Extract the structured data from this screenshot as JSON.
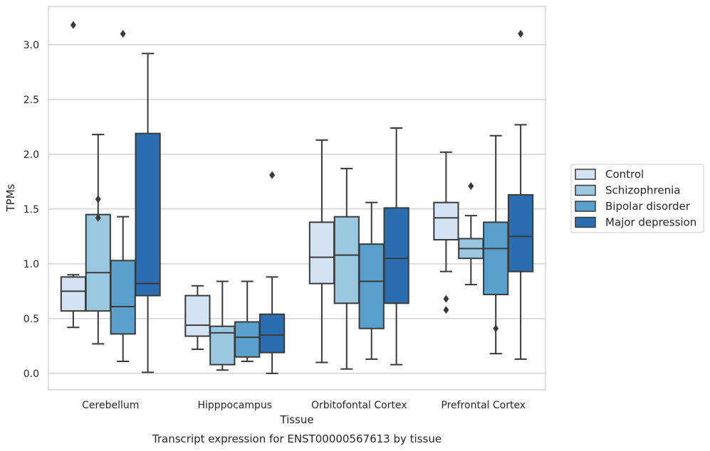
{
  "chart_data": {
    "type": "box",
    "title": "",
    "xlabel": "Tissue",
    "ylabel": "TPMs",
    "caption": "Transcript expression for ENST00000567613 by tissue",
    "ylim": [
      -0.15,
      3.35
    ],
    "yticks": [
      0.0,
      0.5,
      1.0,
      1.5,
      2.0,
      2.5,
      3.0
    ],
    "ytick_labels": [
      "0.0",
      "0.5",
      "1.0",
      "1.5",
      "2.0",
      "2.5",
      "3.0"
    ],
    "grid": "horizontal",
    "legend_position": "right",
    "categories": [
      "Cerebellum",
      "Hipppocampus",
      "Orbitofontal Cortex",
      "Prefrontal Cortex"
    ],
    "series": [
      {
        "name": "Control",
        "color": "#d3e3f3",
        "boxes": [
          {
            "q1": 0.57,
            "median": 0.75,
            "q3": 0.88,
            "whislo": 0.42,
            "whishi": 0.9,
            "fliers": [
              3.18
            ]
          },
          {
            "q1": 0.34,
            "median": 0.44,
            "q3": 0.71,
            "whislo": 0.22,
            "whishi": 0.8,
            "fliers": []
          },
          {
            "q1": 0.82,
            "median": 1.06,
            "q3": 1.38,
            "whislo": 0.1,
            "whishi": 2.13,
            "fliers": []
          },
          {
            "q1": 1.22,
            "median": 1.42,
            "q3": 1.56,
            "whislo": 0.93,
            "whishi": 2.02,
            "fliers": [
              0.68,
              0.58
            ]
          }
        ]
      },
      {
        "name": "Schizophrenia",
        "color": "#9ac8e0",
        "boxes": [
          {
            "q1": 0.57,
            "median": 0.92,
            "q3": 1.45,
            "whislo": 0.27,
            "whishi": 2.18,
            "fliers": [
              1.59,
              1.42
            ]
          },
          {
            "q1": 0.08,
            "median": 0.37,
            "q3": 0.43,
            "whislo": 0.03,
            "whishi": 0.84,
            "fliers": []
          },
          {
            "q1": 0.64,
            "median": 1.08,
            "q3": 1.43,
            "whislo": 0.04,
            "whishi": 1.87,
            "fliers": []
          },
          {
            "q1": 1.05,
            "median": 1.14,
            "q3": 1.23,
            "whislo": 0.81,
            "whishi": 1.44,
            "fliers": [
              1.71
            ]
          }
        ]
      },
      {
        "name": "Bipolar disorder",
        "color": "#5aa0cd",
        "boxes": [
          {
            "q1": 0.36,
            "median": 0.61,
            "q3": 1.03,
            "whislo": 0.11,
            "whishi": 1.43,
            "fliers": [
              3.1
            ]
          },
          {
            "q1": 0.15,
            "median": 0.33,
            "q3": 0.47,
            "whislo": 0.11,
            "whishi": 0.84,
            "fliers": []
          },
          {
            "q1": 0.41,
            "median": 0.84,
            "q3": 1.18,
            "whislo": 0.13,
            "whishi": 1.56,
            "fliers": []
          },
          {
            "q1": 0.72,
            "median": 1.14,
            "q3": 1.38,
            "whislo": 0.18,
            "whishi": 2.17,
            "fliers": [
              0.41
            ]
          }
        ]
      },
      {
        "name": "Major depression",
        "color": "#2a6eb1",
        "boxes": [
          {
            "q1": 0.71,
            "median": 0.82,
            "q3": 2.19,
            "whislo": 0.01,
            "whishi": 2.92,
            "fliers": []
          },
          {
            "q1": 0.19,
            "median": 0.35,
            "q3": 0.54,
            "whislo": 0.0,
            "whishi": 0.88,
            "fliers": [
              1.81
            ]
          },
          {
            "q1": 0.64,
            "median": 1.05,
            "q3": 1.51,
            "whislo": 0.08,
            "whishi": 2.24,
            "fliers": []
          },
          {
            "q1": 0.93,
            "median": 1.25,
            "q3": 1.63,
            "whislo": 0.13,
            "whishi": 2.27,
            "fliers": [
              3.1
            ]
          }
        ]
      }
    ]
  }
}
